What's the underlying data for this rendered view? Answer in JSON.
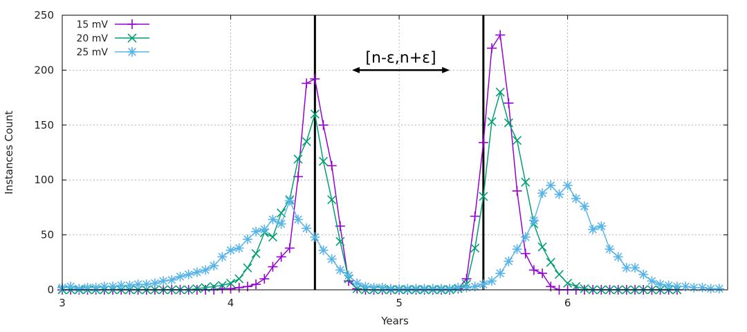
{
  "chart_data": {
    "type": "line",
    "xlabel": "Years",
    "ylabel": "Instances Count",
    "xlim": [
      3,
      6.95
    ],
    "ylim": [
      0,
      250
    ],
    "xticks": [
      3,
      4,
      5,
      6
    ],
    "yticks": [
      0,
      50,
      100,
      150,
      200,
      250
    ],
    "grid": true,
    "legend_position": "top-left",
    "vlines": [
      4.5,
      5.5
    ],
    "annotation": {
      "text": "[n-ε,n+ε]",
      "x_from": 4.72,
      "x_to": 5.3,
      "y": 200
    },
    "series": [
      {
        "name": "15 mV",
        "color": "#9400d3",
        "marker": "plus",
        "x": [
          3.0,
          3.05,
          3.1,
          3.15,
          3.2,
          3.25,
          3.3,
          3.35,
          3.4,
          3.45,
          3.5,
          3.55,
          3.6,
          3.65,
          3.7,
          3.75,
          3.8,
          3.85,
          3.9,
          3.95,
          4.0,
          4.05,
          4.1,
          4.15,
          4.2,
          4.25,
          4.3,
          4.35,
          4.4,
          4.45,
          4.5,
          4.55,
          4.6,
          4.65,
          4.7,
          4.75,
          4.8,
          4.85,
          4.9,
          4.95,
          5.0,
          5.05,
          5.1,
          5.15,
          5.2,
          5.25,
          5.3,
          5.35,
          5.4,
          5.45,
          5.5,
          5.55,
          5.6,
          5.65,
          5.7,
          5.75,
          5.8,
          5.85,
          5.9,
          5.95,
          6.0,
          6.05,
          6.1,
          6.15,
          6.2,
          6.25,
          6.3,
          6.35,
          6.4,
          6.45,
          6.5,
          6.55,
          6.6,
          6.65
        ],
        "y": [
          0,
          0,
          0,
          0,
          0,
          0,
          0,
          0,
          0,
          0,
          0,
          0,
          0,
          0,
          0,
          0,
          0,
          0,
          0,
          1,
          1,
          2,
          3,
          5,
          10,
          21,
          30,
          38,
          103,
          188,
          192,
          150,
          113,
          58,
          8,
          1,
          0,
          0,
          0,
          0,
          0,
          0,
          0,
          0,
          0,
          0,
          0,
          1,
          10,
          67,
          134,
          220,
          232,
          170,
          90,
          33,
          18,
          15,
          3,
          0,
          0,
          0,
          0,
          0,
          0,
          0,
          0,
          0,
          0,
          0,
          0,
          0,
          0,
          0
        ]
      },
      {
        "name": "20 mV",
        "color": "#009e73",
        "marker": "cross",
        "x": [
          3.0,
          3.05,
          3.1,
          3.15,
          3.2,
          3.25,
          3.3,
          3.35,
          3.4,
          3.45,
          3.5,
          3.55,
          3.6,
          3.65,
          3.7,
          3.75,
          3.8,
          3.85,
          3.9,
          3.95,
          4.0,
          4.05,
          4.1,
          4.15,
          4.2,
          4.25,
          4.3,
          4.35,
          4.4,
          4.45,
          4.5,
          4.55,
          4.6,
          4.65,
          4.7,
          4.75,
          4.8,
          4.85,
          4.9,
          4.95,
          5.0,
          5.05,
          5.1,
          5.15,
          5.2,
          5.25,
          5.3,
          5.35,
          5.4,
          5.45,
          5.5,
          5.55,
          5.6,
          5.65,
          5.7,
          5.75,
          5.8,
          5.85,
          5.9,
          5.95,
          6.0,
          6.05,
          6.1,
          6.15,
          6.2,
          6.25,
          6.3,
          6.35,
          6.4,
          6.45,
          6.5,
          6.55,
          6.6,
          6.65
        ],
        "y": [
          0,
          0,
          0,
          0,
          0,
          0,
          0,
          0,
          0,
          0,
          0,
          0,
          0,
          0,
          0,
          0,
          1,
          2,
          3,
          4,
          6,
          10,
          20,
          33,
          52,
          48,
          70,
          82,
          119,
          135,
          160,
          117,
          82,
          44,
          10,
          1,
          0,
          0,
          0,
          0,
          0,
          0,
          0,
          0,
          0,
          0,
          0,
          1,
          5,
          38,
          85,
          153,
          180,
          152,
          136,
          98,
          60,
          39,
          25,
          14,
          6,
          3,
          1,
          0,
          0,
          0,
          0,
          0,
          0,
          0,
          0,
          0,
          0,
          0
        ]
      },
      {
        "name": "25 mV",
        "color": "#56b4e9",
        "marker": "star",
        "x": [
          3.0,
          3.05,
          3.1,
          3.15,
          3.2,
          3.25,
          3.3,
          3.35,
          3.4,
          3.45,
          3.5,
          3.55,
          3.6,
          3.65,
          3.7,
          3.75,
          3.8,
          3.85,
          3.9,
          3.95,
          4.0,
          4.05,
          4.1,
          4.15,
          4.2,
          4.25,
          4.3,
          4.35,
          4.4,
          4.45,
          4.5,
          4.55,
          4.6,
          4.65,
          4.7,
          4.75,
          4.8,
          4.85,
          4.9,
          4.95,
          5.0,
          5.05,
          5.1,
          5.15,
          5.2,
          5.25,
          5.3,
          5.35,
          5.4,
          5.45,
          5.5,
          5.55,
          5.6,
          5.65,
          5.7,
          5.75,
          5.8,
          5.85,
          5.9,
          5.95,
          6.0,
          6.05,
          6.1,
          6.15,
          6.2,
          6.25,
          6.3,
          6.35,
          6.4,
          6.45,
          6.5,
          6.55,
          6.6,
          6.65,
          6.7,
          6.75,
          6.8,
          6.85,
          6.9
        ],
        "y": [
          2,
          3,
          1,
          2,
          2,
          3,
          3,
          4,
          4,
          5,
          5,
          6,
          8,
          9,
          12,
          14,
          16,
          18,
          22,
          30,
          36,
          38,
          46,
          53,
          55,
          64,
          60,
          81,
          64,
          56,
          48,
          36,
          28,
          18,
          13,
          6,
          3,
          2,
          2,
          1,
          1,
          1,
          1,
          1,
          1,
          1,
          1,
          2,
          2,
          3,
          5,
          8,
          15,
          26,
          37,
          48,
          63,
          88,
          95,
          87,
          95,
          83,
          76,
          55,
          58,
          37,
          30,
          20,
          20,
          14,
          8,
          5,
          4,
          3,
          3,
          2,
          2,
          1,
          1
        ]
      }
    ]
  }
}
